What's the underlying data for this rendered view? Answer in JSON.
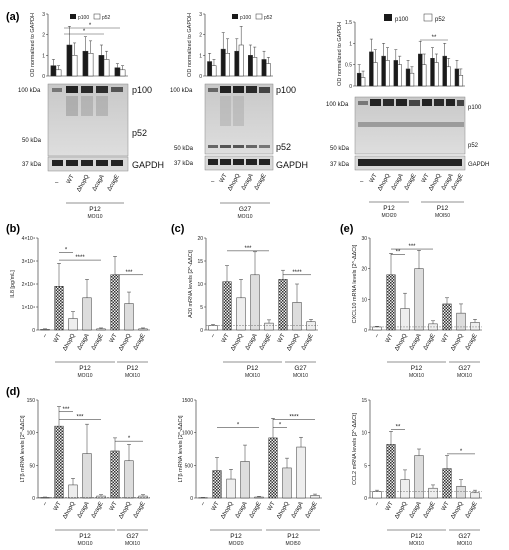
{
  "panel_letters": [
    "(a)",
    "(b)",
    "(c)",
    "(d)",
    "(e)"
  ],
  "markers": {
    "kda100": "100 kDa",
    "kda50": "50 kDa",
    "kda37": "37 kDa",
    "kda100s": "100 kDa",
    "kda50s": "50 kDa",
    "kda37s": "37 kDa"
  },
  "band_labels": {
    "p100": "p100",
    "p52": "p52",
    "gapdh": "GAPDH"
  },
  "strains": {
    "none": "–",
    "wt": "WT",
    "hopq": "ΔhopQ",
    "caga": "ΔcagA",
    "cage": "ΔcagE"
  },
  "groups": {
    "p12": "P12",
    "g27": "G27",
    "moi10": "MOI10",
    "moi20": "MOI20",
    "moi50": "MOI50"
  },
  "legend": {
    "p100": "p100",
    "p52": "p52"
  },
  "ylabels": {
    "od": "OD normalized to GAPDH",
    "il8": "IL8 [pg/mL]",
    "a20": "A20 mRNA levels [2^-ΔΔCt]",
    "cxcl10": "CXCL10 mRNA levels [2^-ΔΔCt]",
    "ltb": "LTβ mRNA levels [2^-ΔΔCt]",
    "ccl2": "CCL2 mRNA levels [2^-ΔΔCt]"
  },
  "colors": {
    "dark": "#1a1a1a",
    "light": "#e8e8e8",
    "checker": "#555555",
    "blot": "#cfcfcf"
  },
  "chart_data": [
    {
      "id": "a1",
      "type": "bar",
      "ylabel": "OD normalized to GAPDH",
      "ylim": [
        0,
        3
      ],
      "yticks": [
        0,
        1,
        2,
        3
      ],
      "categories": [
        "–",
        "WT",
        "ΔhopQ",
        "ΔcagA",
        "ΔcagE"
      ],
      "series": [
        {
          "name": "p100",
          "values": [
            0.5,
            1.5,
            1.2,
            1.0,
            0.4
          ]
        },
        {
          "name": "p52",
          "values": [
            0.3,
            1.0,
            1.1,
            0.8,
            0.3
          ]
        }
      ],
      "errors": [
        [
          0.3,
          0.9,
          0.7,
          0.5,
          0.2
        ],
        [
          0.2,
          0.6,
          0.6,
          0.4,
          0.2
        ]
      ]
    },
    {
      "id": "a2",
      "type": "bar",
      "ylabel": "OD normalized to GAPDH",
      "ylim": [
        0,
        3
      ],
      "yticks": [
        0,
        1,
        2,
        3
      ],
      "categories": [
        "–",
        "WT",
        "ΔhopQ",
        "ΔcagA",
        "ΔcagE"
      ],
      "series": [
        {
          "name": "p100",
          "values": [
            0.7,
            1.3,
            1.2,
            1.0,
            0.8
          ]
        },
        {
          "name": "p52",
          "values": [
            0.5,
            1.1,
            1.5,
            0.9,
            0.6
          ]
        }
      ],
      "errors": [
        [
          0.4,
          0.8,
          0.6,
          0.5,
          0.4
        ],
        [
          0.3,
          0.7,
          0.9,
          0.5,
          0.3
        ]
      ]
    },
    {
      "id": "a3",
      "type": "bar",
      "ylabel": "OD normalized to GAPDH",
      "ylim": [
        0,
        1.5
      ],
      "yticks": [
        0,
        0.5,
        1.0,
        1.5
      ],
      "categories": [
        "–",
        "WT",
        "ΔhopQ",
        "ΔcagA",
        "ΔcagE",
        "WT",
        "ΔhopQ",
        "ΔcagA",
        "ΔcagE"
      ],
      "series": [
        {
          "name": "p100",
          "values": [
            0.3,
            0.8,
            0.7,
            0.6,
            0.4,
            0.75,
            0.65,
            0.7,
            0.4
          ]
        },
        {
          "name": "p52",
          "values": [
            0.2,
            0.55,
            0.6,
            0.5,
            0.3,
            0.5,
            0.55,
            0.45,
            0.25
          ]
        }
      ],
      "errors": [
        [
          0.2,
          0.3,
          0.3,
          0.25,
          0.2,
          0.3,
          0.25,
          0.3,
          0.2
        ],
        [
          0.15,
          0.3,
          0.3,
          0.2,
          0.15,
          0.25,
          0.2,
          0.2,
          0.15
        ]
      ]
    },
    {
      "id": "b",
      "type": "bar",
      "ylabel": "IL8 [pg/mL]",
      "ylim": [
        0,
        40000
      ],
      "yticks": [
        0,
        10000,
        20000,
        30000,
        40000
      ],
      "ytick_labels": [
        "0",
        "1×10⁴",
        "2×10⁴",
        "3×10⁴",
        "4×10⁴"
      ],
      "categories": [
        "–",
        "WT",
        "ΔhopQ",
        "ΔcagA",
        "ΔcagE",
        "WT",
        "ΔhopQ",
        "ΔcagE"
      ],
      "values": [
        300,
        19000,
        5000,
        14000,
        500,
        24000,
        11500,
        500
      ],
      "errors": [
        200,
        10000,
        3000,
        8000,
        400,
        8000,
        5000,
        400
      ]
    },
    {
      "id": "c",
      "type": "bar",
      "ylabel": "A20 mRNA levels [2^-ΔΔCt]",
      "ylim": [
        0,
        20
      ],
      "yticks": [
        0,
        5,
        10,
        15,
        20
      ],
      "categories": [
        "–",
        "WT",
        "ΔhopQ",
        "ΔcagA",
        "ΔcagE",
        "WT",
        "ΔhopQ",
        "ΔcagE"
      ],
      "values": [
        1,
        10.5,
        7,
        12,
        1.5,
        11,
        6,
        1.8
      ],
      "errors": [
        0.2,
        3.5,
        4,
        5,
        0.7,
        2,
        4,
        0.5
      ]
    },
    {
      "id": "e",
      "type": "bar",
      "ylabel": "CXCL10 mRNA levels [2^-ΔΔCt]",
      "ylim": [
        0,
        30
      ],
      "yticks": [
        0,
        10,
        20,
        30
      ],
      "categories": [
        "–",
        "WT",
        "ΔhopQ",
        "ΔcagA",
        "ΔcagE",
        "WT",
        "ΔhopQ",
        "ΔcagE"
      ],
      "values": [
        1,
        18,
        7,
        20,
        2,
        8.5,
        5.5,
        2.5
      ],
      "errors": [
        0.2,
        7,
        5,
        6,
        1,
        2,
        3,
        1
      ]
    },
    {
      "id": "d1",
      "type": "bar",
      "ylabel": "LTβ mRNA levels [2^-ΔΔCt]",
      "ylim": [
        0,
        150
      ],
      "yticks": [
        0,
        50,
        100,
        150
      ],
      "categories": [
        "–",
        "WT",
        "ΔhopQ",
        "ΔcagA",
        "ΔcagE",
        "WT",
        "ΔhopQ",
        "ΔcagE"
      ],
      "values": [
        1,
        110,
        20,
        68,
        3,
        72,
        57,
        3
      ],
      "errors": [
        0.5,
        30,
        10,
        45,
        2,
        20,
        25,
        2
      ]
    },
    {
      "id": "d2",
      "type": "bar",
      "ylabel": "LTβ mRNA levels [2^-ΔΔCt]",
      "ylim": [
        0,
        1500
      ],
      "yticks": [
        0,
        500,
        1000,
        1500
      ],
      "categories": [
        "–",
        "WT",
        "ΔhopQ",
        "ΔcagA",
        "ΔcagE",
        "WT",
        "ΔhopQ",
        "ΔcagA",
        "ΔcagE"
      ],
      "values": [
        5,
        420,
        290,
        560,
        15,
        920,
        460,
        780,
        40
      ],
      "errors": [
        3,
        200,
        150,
        250,
        10,
        300,
        150,
        150,
        20
      ]
    },
    {
      "id": "d3",
      "type": "bar",
      "ylabel": "CCL2 mRNA levels [2^-ΔΔCt]",
      "ylim": [
        0,
        15
      ],
      "yticks": [
        0,
        5,
        10,
        15
      ],
      "categories": [
        "–",
        "WT",
        "ΔhopQ",
        "ΔcagA",
        "ΔcagE",
        "WT",
        "ΔhopQ",
        "ΔcagE"
      ],
      "values": [
        1,
        8.2,
        2.8,
        6.5,
        1.5,
        4.5,
        1.8,
        0.8
      ],
      "errors": [
        0.2,
        2,
        1.5,
        1,
        0.5,
        2,
        1,
        0.4
      ]
    }
  ]
}
